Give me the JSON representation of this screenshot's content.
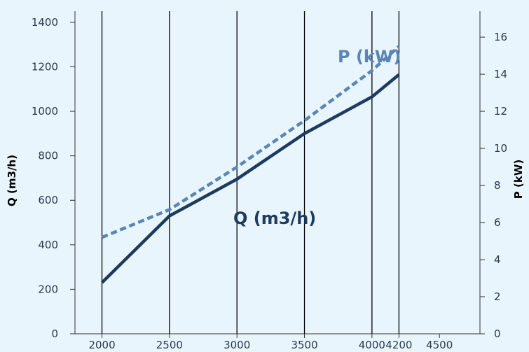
{
  "chart_data": {
    "type": "line",
    "x_ticks": [
      2000,
      2500,
      3000,
      3500,
      4000,
      4200,
      4500
    ],
    "xlim": [
      1800,
      4800
    ],
    "y_left": {
      "label": "Q (m3/h)",
      "ylim": [
        0,
        1450
      ],
      "ticks": [
        0,
        200,
        400,
        600,
        800,
        1000,
        1200,
        1400
      ]
    },
    "y_right": {
      "label": "P (kW)",
      "ylim": [
        0,
        17.4
      ],
      "ticks": [
        0,
        2,
        4,
        6,
        8,
        10,
        12,
        14,
        16
      ]
    },
    "vertical_lines_at": [
      2000,
      2500,
      3000,
      3500,
      4000,
      4200
    ],
    "series": [
      {
        "name": "Q (m3/h)",
        "axis": "left",
        "style": "solid",
        "color": "#1e3a5f",
        "x": [
          2000,
          2500,
          3000,
          3500,
          4000,
          4200
        ],
        "values": [
          230,
          530,
          695,
          900,
          1065,
          1165
        ]
      },
      {
        "name": "P (kW)",
        "axis": "right",
        "style": "dashed",
        "color": "#5b86b4",
        "x": [
          2000,
          2500,
          3000,
          3500,
          4000,
          4200
        ],
        "values": [
          5.2,
          6.7,
          9.0,
          11.5,
          14.2,
          15.5
        ]
      }
    ],
    "grid": false,
    "legend": "inline"
  }
}
